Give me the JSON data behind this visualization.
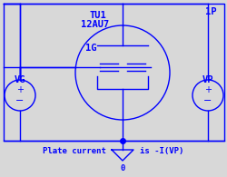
{
  "bg_color": "#d8d8d8",
  "line_color": "blue",
  "text_color": "blue",
  "title_line1": "TU1",
  "title_line2": "12AU7",
  "label_1G": "1G",
  "label_1P": "1P",
  "label_VG": "VG",
  "label_VP": "VP",
  "bottom_text1": "Plate current",
  "bottom_text2": "is -I(VP)",
  "ground_label": "0",
  "fig_w": 2.51,
  "fig_h": 1.95,
  "dpi": 100
}
